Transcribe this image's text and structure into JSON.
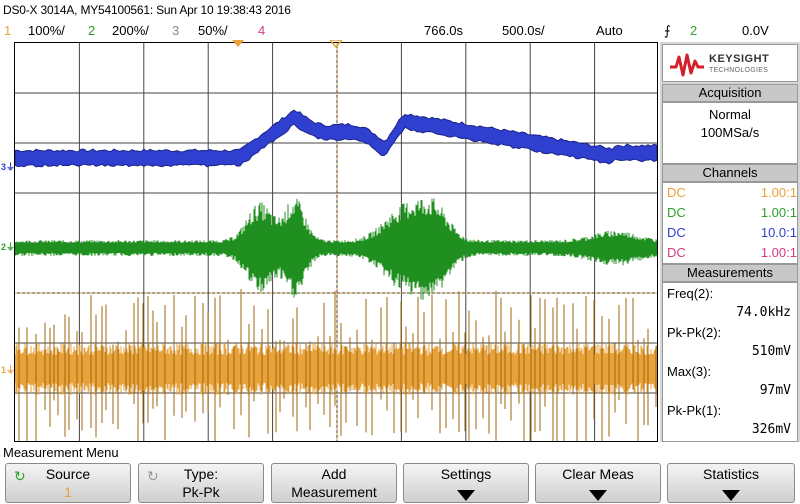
{
  "title": "DS0-X 3014A, MY54100561: Sun Apr 10 19:38:43 2016",
  "status": {
    "ch1_num": "1",
    "ch1_scale": "100%/",
    "ch2_num": "2",
    "ch2_scale": "200%/",
    "ch3_num": "3",
    "ch3_scale": "50%/",
    "ch4_num": "4",
    "time_pos": "766.0s",
    "time_scale": "500.0s/",
    "trigger_mode": "Auto",
    "trigger_icon": "rising-edge-icon",
    "trigger_source": "2",
    "trigger_level": "0.0V"
  },
  "colors": {
    "ch1": "#e8a23a",
    "ch1_trace": "#a0660f",
    "ch2": "#2aa12a",
    "ch2_trace": "#1f8f1f",
    "ch3": "#2f3fd0",
    "ch4": "#d63a88"
  },
  "channel_markers": {
    "ch1": "1",
    "ch2": "2",
    "ch3": "3"
  },
  "logo": {
    "brand": "KEYSIGHT",
    "sub": "TECHNOLOGIES"
  },
  "acquisition": {
    "heading": "Acquisition",
    "mode": "Normal",
    "rate": "100MSa/s"
  },
  "channels": {
    "heading": "Channels",
    "rows": [
      {
        "coupling": "DC",
        "ratio": "1.00:1"
      },
      {
        "coupling": "DC",
        "ratio": "1.00:1"
      },
      {
        "coupling": "DC",
        "ratio": "10.0:1"
      },
      {
        "coupling": "DC",
        "ratio": "1.00:1"
      }
    ]
  },
  "measurements": {
    "heading": "Measurements",
    "items": [
      {
        "label": "Freq(2):",
        "value": "74.0kHz"
      },
      {
        "label": "Pk-Pk(2):",
        "value": "510mV"
      },
      {
        "label": "Max(3):",
        "value": "97mV"
      },
      {
        "label": "Pk-Pk(1):",
        "value": "326mV"
      }
    ]
  },
  "menu": {
    "title": "Measurement Menu",
    "softkeys": [
      {
        "line1": "Source",
        "line2": "1"
      },
      {
        "line1": "Type:",
        "line2": "Pk-Pk"
      },
      {
        "line1": "Add",
        "line2": "Measurement"
      },
      {
        "line1": "Settings",
        "line2": ""
      },
      {
        "line1": "Clear Meas",
        "line2": ""
      },
      {
        "line1": "Statistics",
        "line2": ""
      }
    ]
  }
}
